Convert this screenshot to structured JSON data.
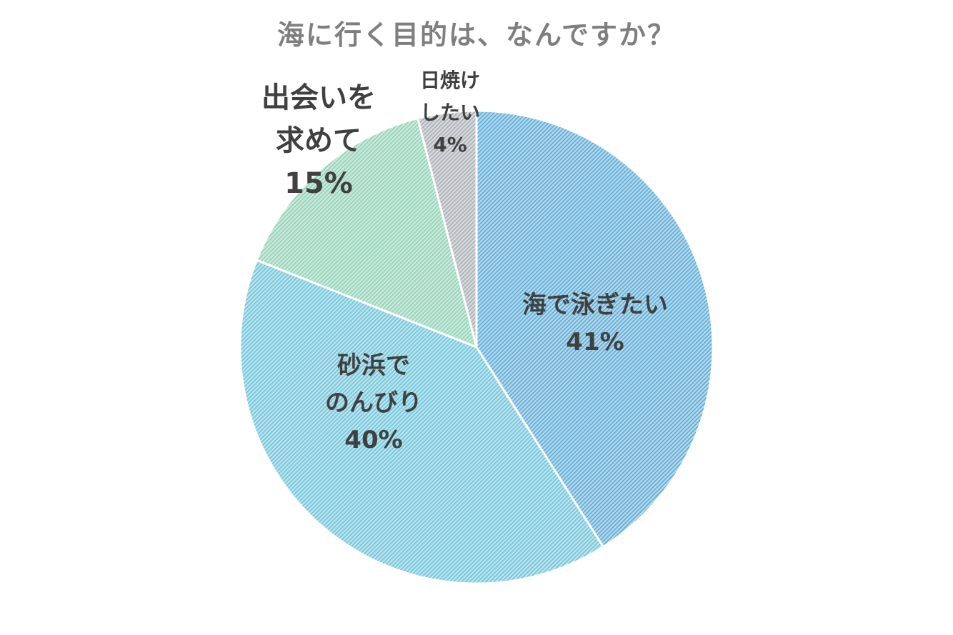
{
  "chart_data": {
    "type": "pie",
    "title": "海に行く目的は、なんですか？",
    "slices": [
      {
        "label_lines": [
          "海で泳ぎたい"
        ],
        "value": 41,
        "value_label": "41%",
        "color": "#5aaad6"
      },
      {
        "label_lines": [
          "砂浜で",
          "のんびり"
        ],
        "value": 40,
        "value_label": "40%",
        "color": "#6cc3d9"
      },
      {
        "label_lines": [
          "出会いを",
          "求めて"
        ],
        "value": 15,
        "value_label": "15%",
        "color": "#8fd1b4"
      },
      {
        "label_lines": [
          "日焼け",
          "したい"
        ],
        "value": 4,
        "value_label": "4%",
        "color": "#a9aeb4"
      }
    ]
  }
}
